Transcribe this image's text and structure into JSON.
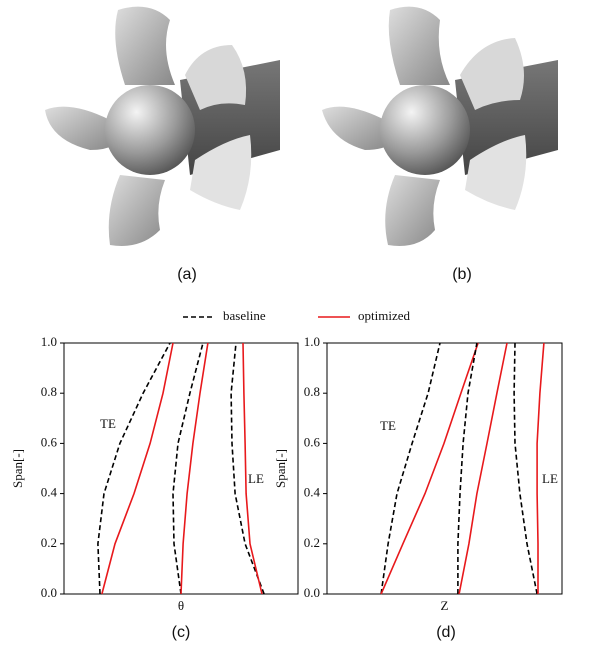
{
  "figure": {
    "captions": [
      "(a)",
      "(b)",
      "(c)",
      "(d)"
    ]
  },
  "chart_data": [
    {
      "type": "line",
      "xlabel": "θ",
      "ylabel": "Span[-]",
      "annotations": [
        "TE",
        "LE"
      ],
      "xlim": [
        0,
        1
      ],
      "ylim": [
        0,
        1
      ],
      "yticks": [
        {
          "value": 0,
          "label": "0.0"
        },
        0.2,
        0.4,
        0.6,
        0.8,
        {
          "value": 1,
          "label": "1.0"
        }
      ],
      "y": [
        0,
        0.2,
        0.4,
        0.6,
        0.8,
        1
      ],
      "series": [
        {
          "name": "baseline",
          "color": "#000000",
          "dash": true,
          "x": [
            0.154,
            0.145,
            0.171,
            0.239,
            0.338,
            0.453
          ]
        },
        {
          "name": "optimized",
          "color": "#e8191c",
          "dash": false,
          "x": [
            0.162,
            0.218,
            0.299,
            0.368,
            0.423,
            0.466
          ]
        },
        {
          "color": "#000000",
          "dash": true,
          "x": [
            0.5,
            0.47,
            0.466,
            0.487,
            0.538,
            0.594
          ]
        },
        {
          "color": "#e8191c",
          "dash": false,
          "x": [
            0.5,
            0.509,
            0.526,
            0.551,
            0.581,
            0.615
          ]
        },
        {
          "color": "#000000",
          "dash": true,
          "x": [
            0.855,
            0.774,
            0.731,
            0.718,
            0.714,
            0.735
          ]
        },
        {
          "color": "#e8191c",
          "dash": false,
          "x": [
            0.846,
            0.795,
            0.778,
            0.774,
            0.769,
            0.765
          ]
        }
      ]
    },
    {
      "type": "line",
      "xlabel": "Z",
      "ylabel": "Span[-]",
      "annotations": [
        "TE",
        "LE"
      ],
      "xlim": [
        0,
        1
      ],
      "ylim": [
        0,
        1
      ],
      "yticks": [
        {
          "value": 0,
          "label": "0.0"
        },
        0.2,
        0.4,
        0.6,
        0.8,
        {
          "value": 1,
          "label": "1.0"
        }
      ],
      "y": [
        0,
        0.2,
        0.4,
        0.6,
        0.8,
        1
      ],
      "series": [
        {
          "color": "#000000",
          "dash": true,
          "x": [
            0.23,
            0.26,
            0.298,
            0.362,
            0.43,
            0.481
          ]
        },
        {
          "color": "#e8191c",
          "dash": false,
          "x": [
            0.23,
            0.323,
            0.417,
            0.498,
            0.57,
            0.643
          ]
        },
        {
          "color": "#000000",
          "dash": true,
          "x": [
            0.557,
            0.557,
            0.566,
            0.579,
            0.6,
            0.638
          ]
        },
        {
          "color": "#e8191c",
          "dash": false,
          "x": [
            0.562,
            0.604,
            0.638,
            0.681,
            0.723,
            0.766
          ]
        },
        {
          "color": "#000000",
          "dash": true,
          "x": [
            0.894,
            0.851,
            0.821,
            0.8,
            0.796,
            0.8
          ]
        },
        {
          "color": "#e8191c",
          "dash": false,
          "x": [
            0.898,
            0.898,
            0.894,
            0.894,
            0.906,
            0.923
          ]
        }
      ]
    }
  ]
}
